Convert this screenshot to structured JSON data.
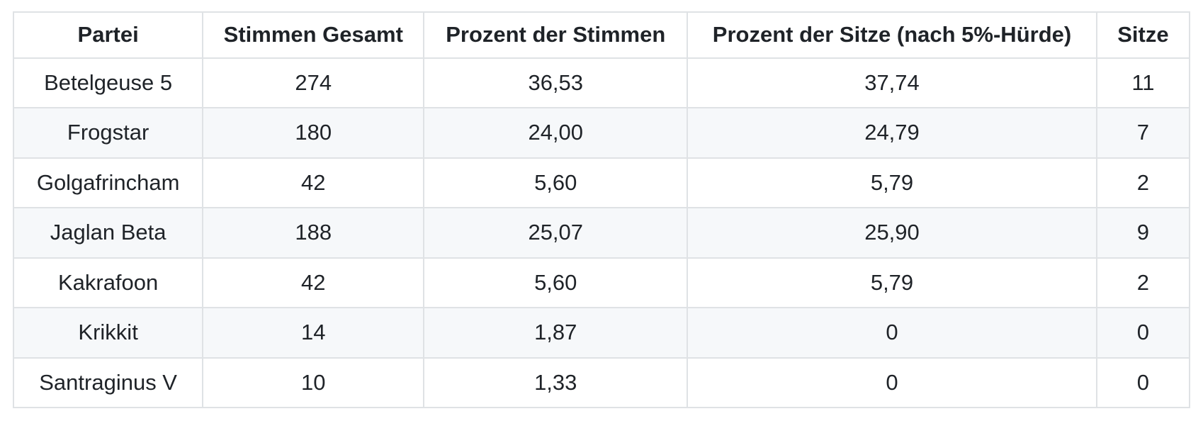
{
  "page": {
    "background_color": "#ffffff",
    "text_color": "#1f2328",
    "border_color": "#dfe2e5",
    "stripe_color": "#f6f8fa"
  },
  "table": {
    "columns": [
      "Partei",
      "Stimmen Gesamt",
      "Prozent der Stimmen",
      "Prozent der Sitze (nach 5%-Hürde)",
      "Sitze"
    ],
    "rows": [
      [
        "Betelgeuse 5",
        "274",
        "36,53",
        "37,74",
        "11"
      ],
      [
        "Frogstar",
        "180",
        "24,00",
        "24,79",
        "7"
      ],
      [
        "Golgafrincham",
        "42",
        "5,60",
        "5,79",
        "2"
      ],
      [
        "Jaglan Beta",
        "188",
        "25,07",
        "25,90",
        "9"
      ],
      [
        "Kakrafoon",
        "42",
        "5,60",
        "5,79",
        "2"
      ],
      [
        "Krikkit",
        "14",
        "1,87",
        "0",
        "0"
      ],
      [
        "Santraginus V",
        "10",
        "1,33",
        "0",
        "0"
      ]
    ]
  },
  "chart_data": {
    "type": "table",
    "title": "",
    "columns": [
      "Partei",
      "Stimmen Gesamt",
      "Prozent der Stimmen",
      "Prozent der Sitze (nach 5%-Hürde)",
      "Sitze"
    ],
    "rows": [
      {
        "partei": "Betelgeuse 5",
        "stimmen_gesamt": 274,
        "prozent_der_stimmen": 36.53,
        "prozent_der_sitze_nach_5_prozent_huerde": 37.74,
        "sitze": 11
      },
      {
        "partei": "Frogstar",
        "stimmen_gesamt": 180,
        "prozent_der_stimmen": 24.0,
        "prozent_der_sitze_nach_5_prozent_huerde": 24.79,
        "sitze": 7
      },
      {
        "partei": "Golgafrincham",
        "stimmen_gesamt": 42,
        "prozent_der_stimmen": 5.6,
        "prozent_der_sitze_nach_5_prozent_huerde": 5.79,
        "sitze": 2
      },
      {
        "partei": "Jaglan Beta",
        "stimmen_gesamt": 188,
        "prozent_der_stimmen": 25.07,
        "prozent_der_sitze_nach_5_prozent_huerde": 25.9,
        "sitze": 9
      },
      {
        "partei": "Kakrafoon",
        "stimmen_gesamt": 42,
        "prozent_der_stimmen": 5.6,
        "prozent_der_sitze_nach_5_prozent_huerde": 5.79,
        "sitze": 2
      },
      {
        "partei": "Krikkit",
        "stimmen_gesamt": 14,
        "prozent_der_stimmen": 1.87,
        "prozent_der_sitze_nach_5_prozent_huerde": 0,
        "sitze": 0
      },
      {
        "partei": "Santraginus V",
        "stimmen_gesamt": 10,
        "prozent_der_stimmen": 1.33,
        "prozent_der_sitze_nach_5_prozent_huerde": 0,
        "sitze": 0
      }
    ],
    "decimal_separator": ",",
    "notes": "Striped rows (2nd, 4th, 6th data rows shaded). All cells center-aligned, headers bold."
  }
}
